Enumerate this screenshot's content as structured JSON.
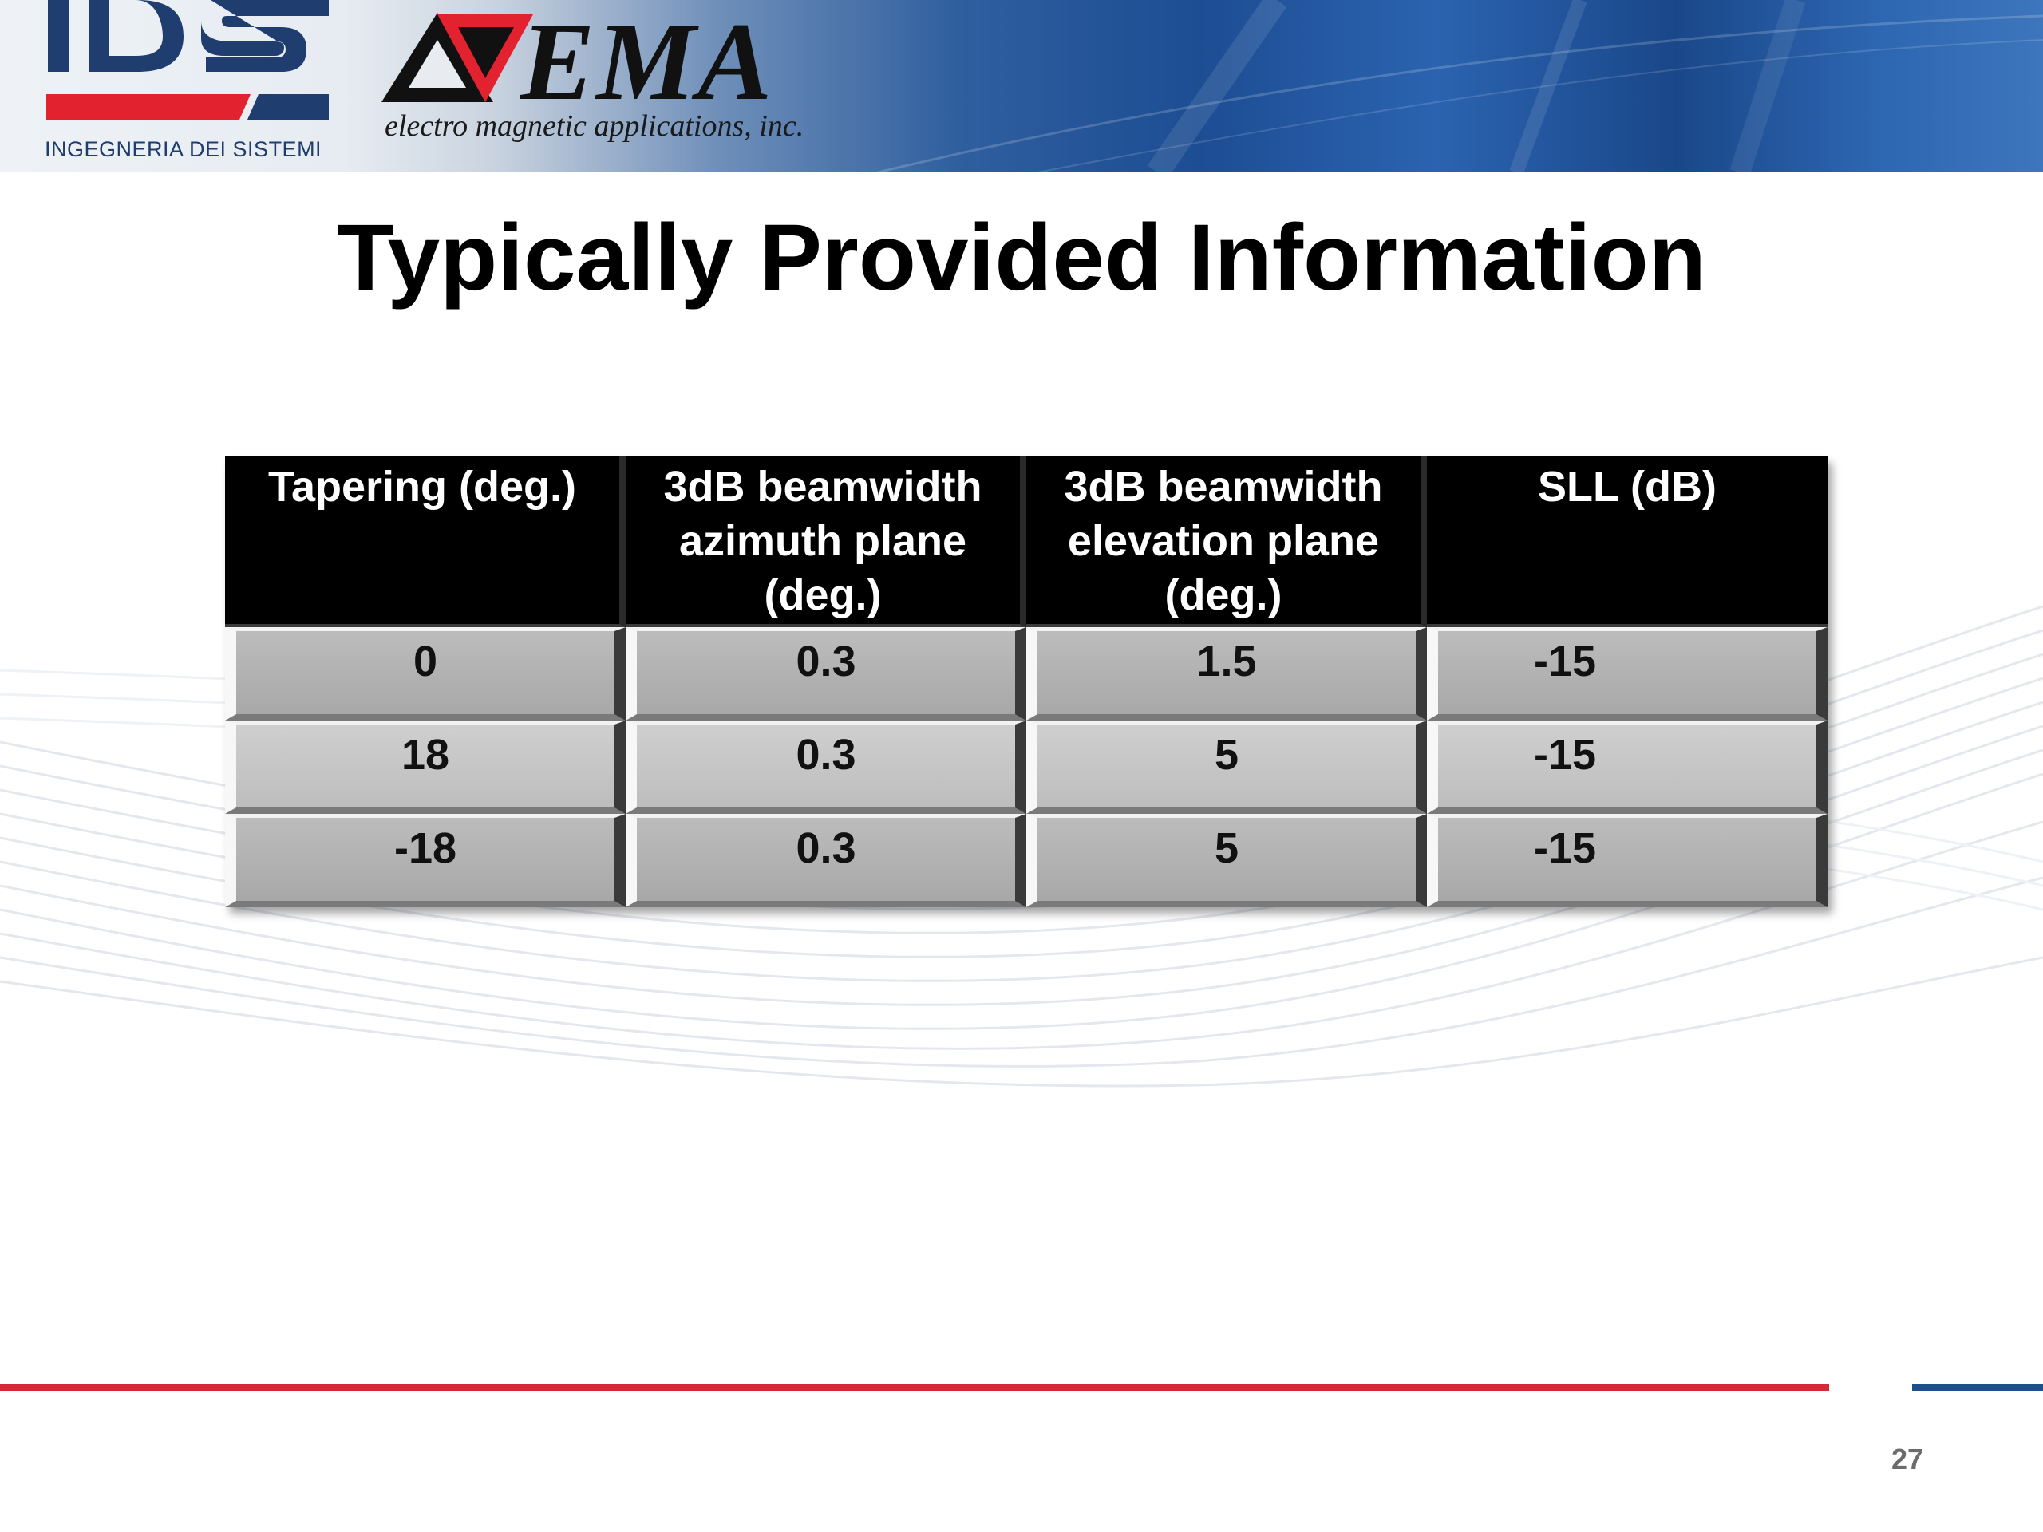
{
  "header": {
    "ids_logo_text": "IDS",
    "ids_company": "INGEGNERIA DEI SISTEMI",
    "ema_logo_text": "EMA",
    "ema_company": "electro magnetic applications, inc.",
    "colors": {
      "ids_blue": "#1f3d6e",
      "ids_red": "#e2222f",
      "ema_red": "#e2222f",
      "banner_blue": "#1d4d93"
    }
  },
  "slide": {
    "title": "Typically Provided Information",
    "page_number": "27"
  },
  "table": {
    "headers": [
      "Tapering (deg.)",
      "3dB beamwidth azimuth plane (deg.)",
      "3dB beamwidth elevation plane (deg.)",
      "SLL (dB)"
    ],
    "rows": [
      [
        "0",
        "0.3",
        "1.5",
        "-15"
      ],
      [
        "18",
        "0.3",
        "5",
        "-15"
      ],
      [
        "-18",
        "0.3",
        "5",
        "-15"
      ]
    ]
  },
  "footer": {
    "line_colors": [
      "#d42a35",
      "#1f4f8c"
    ]
  }
}
